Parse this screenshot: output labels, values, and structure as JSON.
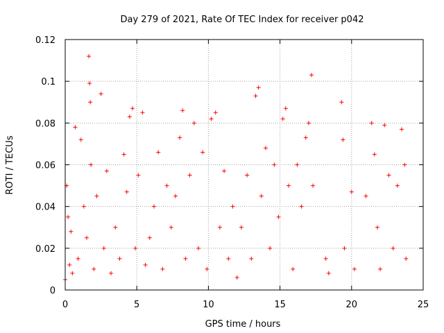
{
  "chart_data": {
    "type": "scatter",
    "title": "Day 279 of 2021, Rate Of TEC Index for receiver p042",
    "xlabel": "GPS time / hours",
    "ylabel": "ROTI / TECUs",
    "xlim": [
      0,
      25
    ],
    "ylim": [
      0,
      0.12
    ],
    "xticks": [
      0,
      5,
      10,
      15,
      20,
      25
    ],
    "xtick_labels": [
      "0",
      "5",
      "10",
      "15",
      "20",
      "25"
    ],
    "yticks": [
      0,
      0.02,
      0.04,
      0.06,
      0.08,
      0.1,
      0.12
    ],
    "ytick_labels": [
      "0",
      "0.02",
      "0.04",
      "0.06",
      "0.08",
      "0.1",
      "0.12"
    ],
    "grid": true,
    "marker": "plus",
    "color": "#ff0000",
    "series": [
      {
        "x": [
          0.0,
          0.1,
          0.2,
          0.3,
          0.4,
          0.5,
          0.7,
          0.9,
          1.1,
          1.3,
          1.5,
          1.65,
          1.7,
          1.75,
          1.8,
          2.0,
          2.2,
          2.5,
          2.7,
          2.9,
          3.2,
          3.5,
          3.8,
          4.1,
          4.3,
          4.5,
          4.7,
          4.9,
          5.1,
          5.4,
          5.6,
          5.9,
          6.2,
          6.5,
          6.8,
          7.1,
          7.4,
          7.7,
          8.0,
          8.2,
          8.4,
          8.7,
          9.0,
          9.3,
          9.6,
          9.9,
          10.2,
          10.5,
          10.8,
          11.1,
          11.4,
          11.7,
          12.0,
          12.3,
          12.7,
          13.0,
          13.3,
          13.5,
          13.7,
          14.0,
          14.3,
          14.6,
          14.9,
          15.2,
          15.4,
          15.6,
          15.9,
          16.2,
          16.5,
          16.8,
          17.0,
          17.2,
          17.3,
          18.2,
          18.4,
          19.3,
          19.4,
          19.5,
          20.0,
          20.2,
          21.0,
          21.4,
          21.6,
          21.8,
          22.0,
          22.3,
          22.6,
          22.9,
          23.2,
          23.5,
          23.7,
          23.8
        ],
        "y": [
          0.005,
          0.05,
          0.035,
          0.012,
          0.028,
          0.008,
          0.078,
          0.015,
          0.072,
          0.04,
          0.025,
          0.112,
          0.099,
          0.09,
          0.06,
          0.01,
          0.045,
          0.094,
          0.02,
          0.057,
          0.008,
          0.03,
          0.015,
          0.065,
          0.047,
          0.083,
          0.087,
          0.02,
          0.055,
          0.085,
          0.012,
          0.025,
          0.04,
          0.066,
          0.01,
          0.05,
          0.03,
          0.045,
          0.073,
          0.086,
          0.015,
          0.055,
          0.08,
          0.02,
          0.066,
          0.01,
          0.082,
          0.085,
          0.03,
          0.057,
          0.015,
          0.04,
          0.006,
          0.03,
          0.055,
          0.015,
          0.093,
          0.097,
          0.045,
          0.068,
          0.02,
          0.06,
          0.035,
          0.082,
          0.087,
          0.05,
          0.01,
          0.06,
          0.04,
          0.073,
          0.08,
          0.103,
          0.05,
          0.015,
          0.008,
          0.09,
          0.072,
          0.02,
          0.047,
          0.01,
          0.045,
          0.08,
          0.065,
          0.03,
          0.01,
          0.079,
          0.055,
          0.02,
          0.05,
          0.077,
          0.06,
          0.015
        ]
      }
    ]
  }
}
